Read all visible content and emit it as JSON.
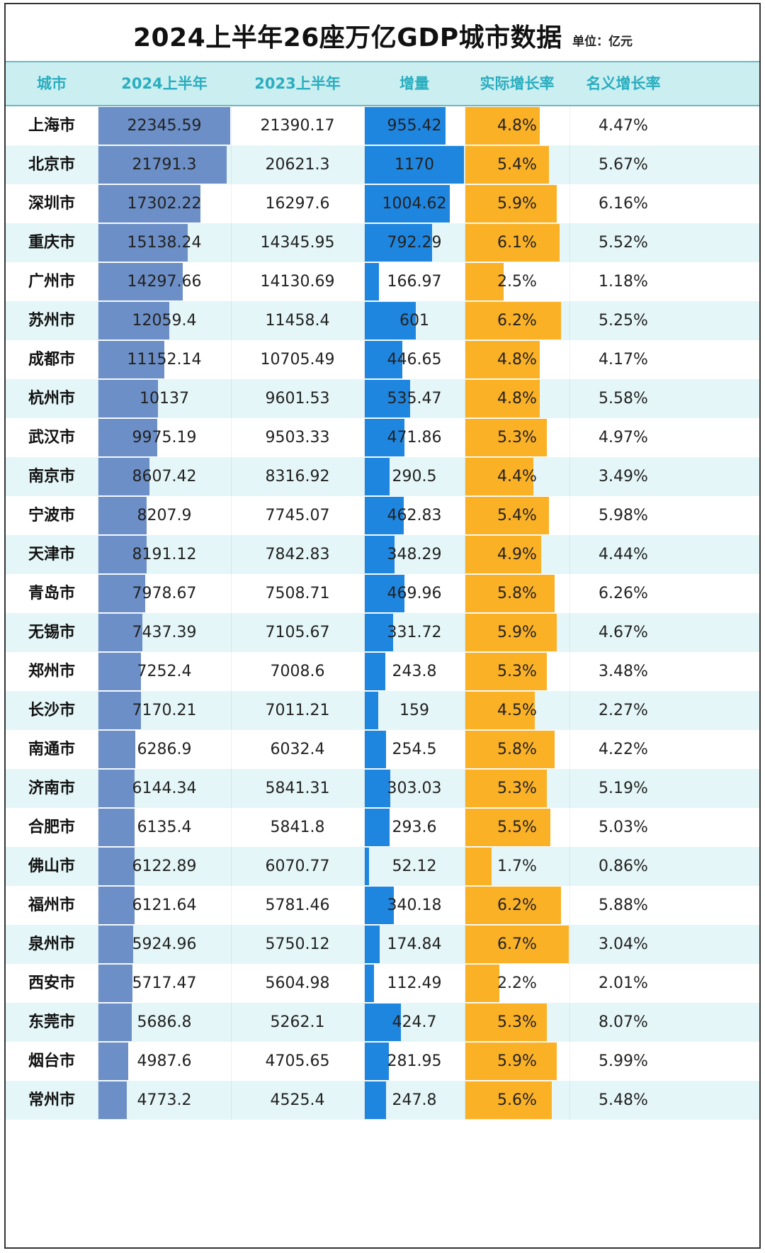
{
  "title": "2024上半年26座万亿GDP城市数据",
  "unit": "单位：亿元",
  "headers": {
    "city": "城市",
    "gdp_2024h1": "2024上半年",
    "gdp_2023h1": "2023上半年",
    "increase": "增量",
    "real_growth": "实际增长率",
    "nominal_growth": "名义增长率"
  },
  "colors": {
    "header_bg": "#cbeef1",
    "header_text": "#2aaebf",
    "alt_row_bg": "#e5f6f8",
    "gdp_bar": "#6c8fc7",
    "increase_bar": "#1f86e0",
    "real_growth_bar": "#fbb126"
  },
  "chart_data": {
    "type": "table",
    "columns": [
      "城市",
      "2024上半年",
      "2023上半年",
      "增量",
      "实际增长率",
      "名义增长率"
    ],
    "rows": [
      {
        "city": "上海市",
        "gdp_2024h1": "22345.59",
        "gdp_2023h1": "21390.17",
        "increase": "955.42",
        "real_growth": "4.8%",
        "nominal_growth": "4.47%"
      },
      {
        "city": "北京市",
        "gdp_2024h1": "21791.3",
        "gdp_2023h1": "20621.3",
        "increase": "1170",
        "real_growth": "5.4%",
        "nominal_growth": "5.67%"
      },
      {
        "city": "深圳市",
        "gdp_2024h1": "17302.22",
        "gdp_2023h1": "16297.6",
        "increase": "1004.62",
        "real_growth": "5.9%",
        "nominal_growth": "6.16%"
      },
      {
        "city": "重庆市",
        "gdp_2024h1": "15138.24",
        "gdp_2023h1": "14345.95",
        "increase": "792.29",
        "real_growth": "6.1%",
        "nominal_growth": "5.52%"
      },
      {
        "city": "广州市",
        "gdp_2024h1": "14297.66",
        "gdp_2023h1": "14130.69",
        "increase": "166.97",
        "real_growth": "2.5%",
        "nominal_growth": "1.18%"
      },
      {
        "city": "苏州市",
        "gdp_2024h1": "12059.4",
        "gdp_2023h1": "11458.4",
        "increase": "601",
        "real_growth": "6.2%",
        "nominal_growth": "5.25%"
      },
      {
        "city": "成都市",
        "gdp_2024h1": "11152.14",
        "gdp_2023h1": "10705.49",
        "increase": "446.65",
        "real_growth": "4.8%",
        "nominal_growth": "4.17%"
      },
      {
        "city": "杭州市",
        "gdp_2024h1": "10137",
        "gdp_2023h1": "9601.53",
        "increase": "535.47",
        "real_growth": "4.8%",
        "nominal_growth": "5.58%"
      },
      {
        "city": "武汉市",
        "gdp_2024h1": "9975.19",
        "gdp_2023h1": "9503.33",
        "increase": "471.86",
        "real_growth": "5.3%",
        "nominal_growth": "4.97%"
      },
      {
        "city": "南京市",
        "gdp_2024h1": "8607.42",
        "gdp_2023h1": "8316.92",
        "increase": "290.5",
        "real_growth": "4.4%",
        "nominal_growth": "3.49%"
      },
      {
        "city": "宁波市",
        "gdp_2024h1": "8207.9",
        "gdp_2023h1": "7745.07",
        "increase": "462.83",
        "real_growth": "5.4%",
        "nominal_growth": "5.98%"
      },
      {
        "city": "天津市",
        "gdp_2024h1": "8191.12",
        "gdp_2023h1": "7842.83",
        "increase": "348.29",
        "real_growth": "4.9%",
        "nominal_growth": "4.44%"
      },
      {
        "city": "青岛市",
        "gdp_2024h1": "7978.67",
        "gdp_2023h1": "7508.71",
        "increase": "469.96",
        "real_growth": "5.8%",
        "nominal_growth": "6.26%"
      },
      {
        "city": "无锡市",
        "gdp_2024h1": "7437.39",
        "gdp_2023h1": "7105.67",
        "increase": "331.72",
        "real_growth": "5.9%",
        "nominal_growth": "4.67%"
      },
      {
        "city": "郑州市",
        "gdp_2024h1": "7252.4",
        "gdp_2023h1": "7008.6",
        "increase": "243.8",
        "real_growth": "5.3%",
        "nominal_growth": "3.48%"
      },
      {
        "city": "长沙市",
        "gdp_2024h1": "7170.21",
        "gdp_2023h1": "7011.21",
        "increase": "159",
        "real_growth": "4.5%",
        "nominal_growth": "2.27%"
      },
      {
        "city": "南通市",
        "gdp_2024h1": "6286.9",
        "gdp_2023h1": "6032.4",
        "increase": "254.5",
        "real_growth": "5.8%",
        "nominal_growth": "4.22%"
      },
      {
        "city": "济南市",
        "gdp_2024h1": "6144.34",
        "gdp_2023h1": "5841.31",
        "increase": "303.03",
        "real_growth": "5.3%",
        "nominal_growth": "5.19%"
      },
      {
        "city": "合肥市",
        "gdp_2024h1": "6135.4",
        "gdp_2023h1": "5841.8",
        "increase": "293.6",
        "real_growth": "5.5%",
        "nominal_growth": "5.03%"
      },
      {
        "city": "佛山市",
        "gdp_2024h1": "6122.89",
        "gdp_2023h1": "6070.77",
        "increase": "52.12",
        "real_growth": "1.7%",
        "nominal_growth": "0.86%"
      },
      {
        "city": "福州市",
        "gdp_2024h1": "6121.64",
        "gdp_2023h1": "5781.46",
        "increase": "340.18",
        "real_growth": "6.2%",
        "nominal_growth": "5.88%"
      },
      {
        "city": "泉州市",
        "gdp_2024h1": "5924.96",
        "gdp_2023h1": "5750.12",
        "increase": "174.84",
        "real_growth": "6.7%",
        "nominal_growth": "3.04%"
      },
      {
        "city": "西安市",
        "gdp_2024h1": "5717.47",
        "gdp_2023h1": "5604.98",
        "increase": "112.49",
        "real_growth": "2.2%",
        "nominal_growth": "2.01%"
      },
      {
        "city": "东莞市",
        "gdp_2024h1": "5686.8",
        "gdp_2023h1": "5262.1",
        "increase": "424.7",
        "real_growth": "5.3%",
        "nominal_growth": "8.07%"
      },
      {
        "city": "烟台市",
        "gdp_2024h1": "4987.6",
        "gdp_2023h1": "4705.65",
        "increase": "281.95",
        "real_growth": "5.9%",
        "nominal_growth": "5.99%"
      },
      {
        "city": "常州市",
        "gdp_2024h1": "4773.2",
        "gdp_2023h1": "4525.4",
        "increase": "247.8",
        "real_growth": "5.6%",
        "nominal_growth": "5.48%"
      }
    ]
  }
}
